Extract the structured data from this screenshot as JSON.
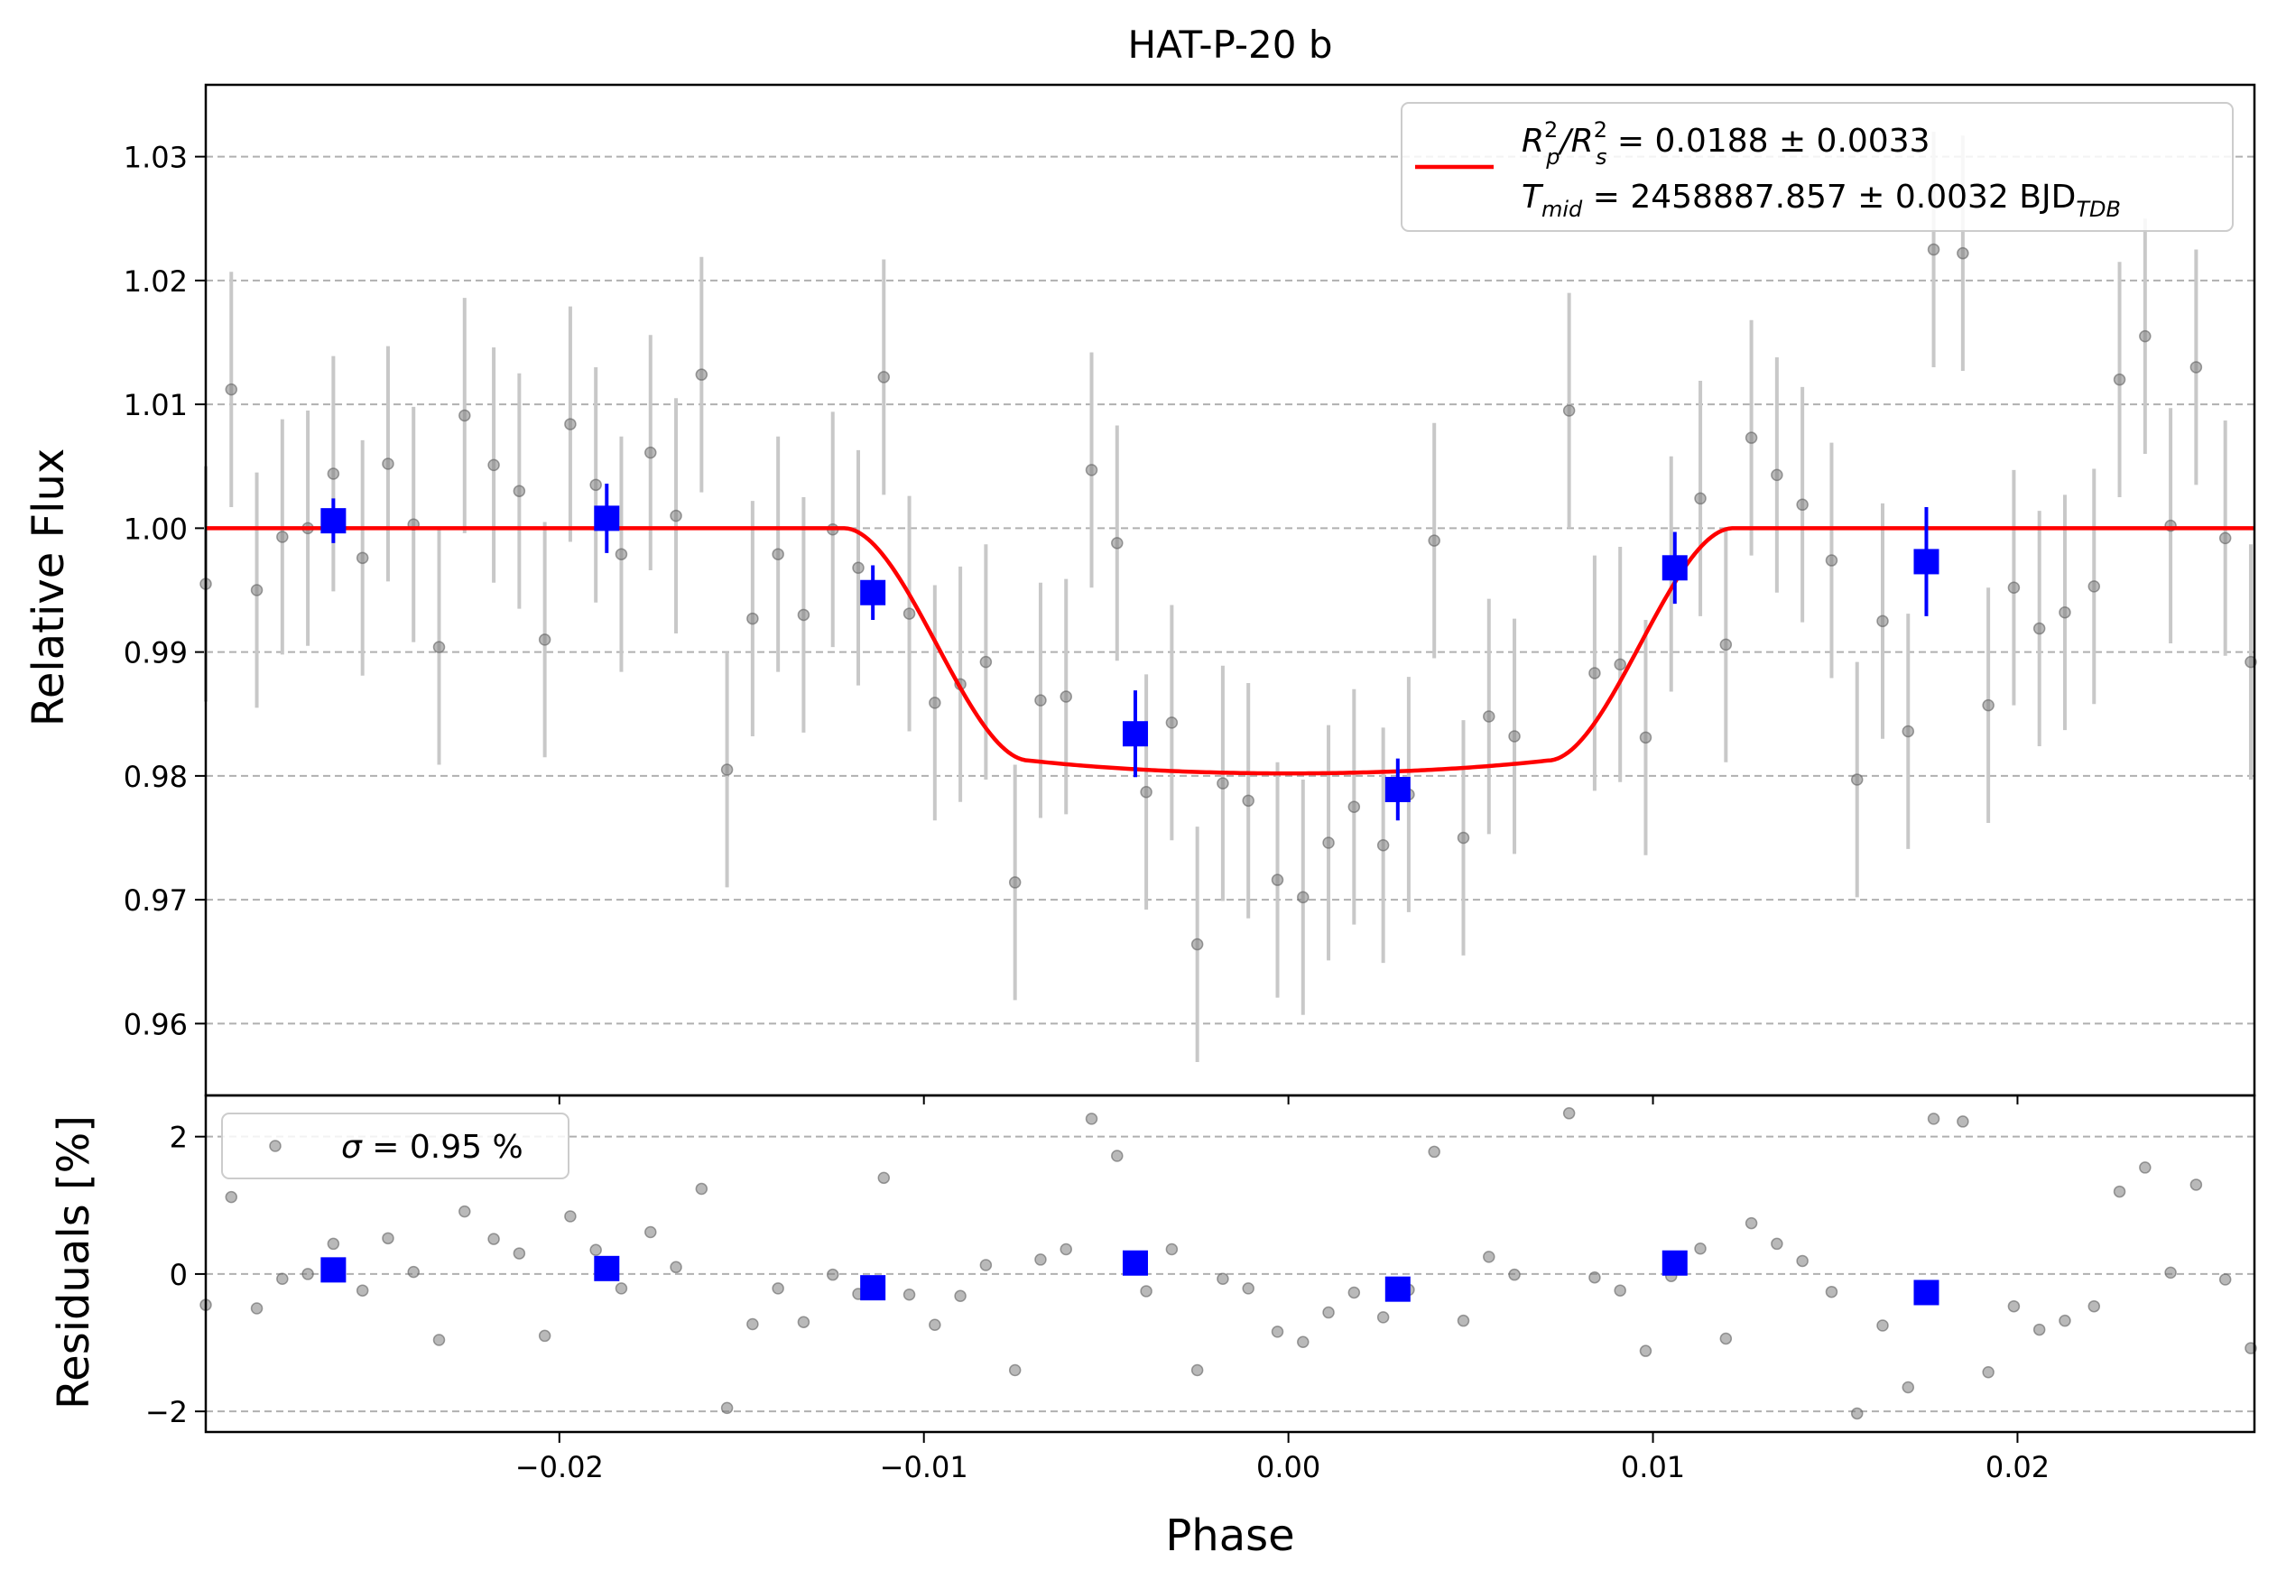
{
  "chart_data": [
    {
      "panel": "top",
      "type": "scatter",
      "title": "HAT-P-20 b",
      "xlabel": "",
      "ylabel": "Relative Flux",
      "xlim": [
        -0.0297,
        0.0265
      ],
      "ylim": [
        0.9542,
        1.0358
      ],
      "y_ticks": [
        0.96,
        0.97,
        0.98,
        0.99,
        1.0,
        1.01,
        1.02,
        1.03
      ],
      "y_tick_labels": [
        "0.96",
        "0.97",
        "0.98",
        "0.99",
        "1.00",
        "1.01",
        "1.02",
        "1.03"
      ],
      "grid": "horizontal dashed",
      "legend": {
        "placement": "top-right",
        "line1": "R²_p/R²_s = 0.0188 ± 0.0033",
        "line2": "T_mid = 2458887.857 ± 0.0032 BJD_TDB"
      },
      "model_params": {
        "depth": 0.0198,
        "t1": -0.0122,
        "t2": -0.0071,
        "t3": 0.0071,
        "t4": 0.0122
      },
      "raw_points": [
        {
          "x": -0.0297,
          "y": 0.9955,
          "err": 0.0095
        },
        {
          "x": -0.029,
          "y": 1.0112,
          "err": 0.0095
        },
        {
          "x": -0.0283,
          "y": 0.995,
          "err": 0.0095
        },
        {
          "x": -0.0276,
          "y": 0.9993,
          "err": 0.0095
        },
        {
          "x": -0.0269,
          "y": 1.0,
          "err": 0.0095
        },
        {
          "x": -0.0262,
          "y": 1.0044,
          "err": 0.0095
        },
        {
          "x": -0.0254,
          "y": 0.9976,
          "err": 0.0095
        },
        {
          "x": -0.0247,
          "y": 1.0052,
          "err": 0.0095
        },
        {
          "x": -0.024,
          "y": 1.0003,
          "err": 0.0095
        },
        {
          "x": -0.0233,
          "y": 0.9904,
          "err": 0.0095
        },
        {
          "x": -0.0226,
          "y": 1.0091,
          "err": 0.0095
        },
        {
          "x": -0.0218,
          "y": 1.0051,
          "err": 0.0095
        },
        {
          "x": -0.0211,
          "y": 1.003,
          "err": 0.0095
        },
        {
          "x": -0.0204,
          "y": 0.991,
          "err": 0.0095
        },
        {
          "x": -0.0197,
          "y": 1.0084,
          "err": 0.0095
        },
        {
          "x": -0.019,
          "y": 1.0035,
          "err": 0.0095
        },
        {
          "x": -0.0183,
          "y": 0.9979,
          "err": 0.0095
        },
        {
          "x": -0.0175,
          "y": 1.0061,
          "err": 0.0095
        },
        {
          "x": -0.0168,
          "y": 1.001,
          "err": 0.0095
        },
        {
          "x": -0.0161,
          "y": 1.0124,
          "err": 0.0095
        },
        {
          "x": -0.0154,
          "y": 0.9805,
          "err": 0.0095
        },
        {
          "x": -0.0147,
          "y": 0.9927,
          "err": 0.0095
        },
        {
          "x": -0.014,
          "y": 0.9979,
          "err": 0.0095
        },
        {
          "x": -0.0133,
          "y": 0.993,
          "err": 0.0095
        },
        {
          "x": -0.0125,
          "y": 0.9999,
          "err": 0.0095
        },
        {
          "x": -0.0118,
          "y": 0.9968,
          "err": 0.0095
        },
        {
          "x": -0.0111,
          "y": 1.0122,
          "err": 0.0095
        },
        {
          "x": -0.0104,
          "y": 0.9931,
          "err": 0.0095
        },
        {
          "x": -0.0097,
          "y": 0.9859,
          "err": 0.0095
        },
        {
          "x": -0.009,
          "y": 0.9874,
          "err": 0.0095
        },
        {
          "x": -0.0083,
          "y": 0.9892,
          "err": 0.0095
        },
        {
          "x": -0.0075,
          "y": 0.9714,
          "err": 0.0095
        },
        {
          "x": -0.0068,
          "y": 0.9861,
          "err": 0.0095
        },
        {
          "x": -0.0061,
          "y": 0.9864,
          "err": 0.0095
        },
        {
          "x": -0.0054,
          "y": 1.0047,
          "err": 0.0095
        },
        {
          "x": -0.0047,
          "y": 0.9988,
          "err": 0.0095
        },
        {
          "x": -0.0039,
          "y": 0.9787,
          "err": 0.0095
        },
        {
          "x": -0.0032,
          "y": 0.9843,
          "err": 0.0095
        },
        {
          "x": -0.0025,
          "y": 0.9664,
          "err": 0.0095
        },
        {
          "x": -0.0018,
          "y": 0.9794,
          "err": 0.0095
        },
        {
          "x": -0.0011,
          "y": 0.978,
          "err": 0.0095
        },
        {
          "x": -0.0003,
          "y": 0.9716,
          "err": 0.0095
        },
        {
          "x": 0.0004,
          "y": 0.9702,
          "err": 0.0095
        },
        {
          "x": 0.0011,
          "y": 0.9746,
          "err": 0.0095
        },
        {
          "x": 0.0018,
          "y": 0.9775,
          "err": 0.0095
        },
        {
          "x": 0.0026,
          "y": 0.9744,
          "err": 0.0095
        },
        {
          "x": 0.0033,
          "y": 0.9785,
          "err": 0.0095
        },
        {
          "x": 0.004,
          "y": 0.999,
          "err": 0.0095
        },
        {
          "x": 0.0048,
          "y": 0.975,
          "err": 0.0095
        },
        {
          "x": 0.0055,
          "y": 0.9848,
          "err": 0.0095
        },
        {
          "x": 0.0062,
          "y": 0.9832,
          "err": 0.0095
        },
        {
          "x": 0.0077,
          "y": 1.0095,
          "err": 0.0095
        },
        {
          "x": 0.0084,
          "y": 0.9883,
          "err": 0.0095
        },
        {
          "x": 0.0091,
          "y": 0.989,
          "err": 0.0095
        },
        {
          "x": 0.0098,
          "y": 0.9831,
          "err": 0.0095
        },
        {
          "x": 0.0105,
          "y": 0.9963,
          "err": 0.0095
        },
        {
          "x": 0.0113,
          "y": 1.0024,
          "err": 0.0095
        },
        {
          "x": 0.012,
          "y": 0.9906,
          "err": 0.0095
        },
        {
          "x": 0.0127,
          "y": 1.0073,
          "err": 0.0095
        },
        {
          "x": 0.0134,
          "y": 1.0043,
          "err": 0.0095
        },
        {
          "x": 0.0141,
          "y": 1.0019,
          "err": 0.0095
        },
        {
          "x": 0.0149,
          "y": 0.9974,
          "err": 0.0095
        },
        {
          "x": 0.0156,
          "y": 0.9797,
          "err": 0.0095
        },
        {
          "x": 0.0163,
          "y": 0.9925,
          "err": 0.0095
        },
        {
          "x": 0.017,
          "y": 0.9836,
          "err": 0.0095
        },
        {
          "x": 0.0177,
          "y": 1.0225,
          "err": 0.0095
        },
        {
          "x": 0.0185,
          "y": 1.0222,
          "err": 0.0095
        },
        {
          "x": 0.0192,
          "y": 0.9857,
          "err": 0.0095
        },
        {
          "x": 0.0199,
          "y": 0.9952,
          "err": 0.0095
        },
        {
          "x": 0.0206,
          "y": 0.9919,
          "err": 0.0095
        },
        {
          "x": 0.0213,
          "y": 0.9932,
          "err": 0.0095
        },
        {
          "x": 0.0221,
          "y": 0.9953,
          "err": 0.0095
        },
        {
          "x": 0.0228,
          "y": 1.012,
          "err": 0.0095
        },
        {
          "x": 0.0235,
          "y": 1.0155,
          "err": 0.0095
        },
        {
          "x": 0.0242,
          "y": 1.0002,
          "err": 0.0095
        },
        {
          "x": 0.0249,
          "y": 1.013,
          "err": 0.0095
        },
        {
          "x": 0.0257,
          "y": 0.9992,
          "err": 0.0095
        },
        {
          "x": 0.0264,
          "y": 0.9892,
          "err": 0.0095
        }
      ],
      "binned_points": [
        {
          "x": -0.0262,
          "y": 1.0006,
          "err": 0.0018
        },
        {
          "x": -0.0187,
          "y": 1.0008,
          "err": 0.0028
        },
        {
          "x": -0.0114,
          "y": 0.9948,
          "err": 0.0022
        },
        {
          "x": -0.0042,
          "y": 0.9834,
          "err": 0.0035
        },
        {
          "x": 0.003,
          "y": 0.9789,
          "err": 0.0025
        },
        {
          "x": 0.0106,
          "y": 0.9968,
          "err": 0.0029
        },
        {
          "x": 0.0175,
          "y": 0.9973,
          "err": 0.0044
        }
      ]
    },
    {
      "panel": "bottom",
      "type": "scatter",
      "xlabel": "Phase",
      "ylabel": "Residuals [%]",
      "xlim": [
        -0.0297,
        0.0265
      ],
      "ylim": [
        -2.3,
        2.6
      ],
      "x_ticks": [
        -0.02,
        -0.01,
        0.0,
        0.01,
        0.02
      ],
      "x_tick_labels": [
        "−0.02",
        "−0.01",
        "0.00",
        "0.01",
        "0.02"
      ],
      "y_ticks": [
        -2,
        0,
        2
      ],
      "y_tick_labels": [
        "−2",
        "0",
        "2"
      ],
      "grid": "horizontal dashed",
      "legend": {
        "placement": "top-left",
        "label": "σ = 0.95 %"
      },
      "residual_points": [
        {
          "x": -0.0297,
          "y": -0.45
        },
        {
          "x": -0.029,
          "y": 1.12
        },
        {
          "x": -0.0283,
          "y": -0.5
        },
        {
          "x": -0.0276,
          "y": -0.07
        },
        {
          "x": -0.0269,
          "y": 0.0
        },
        {
          "x": -0.0262,
          "y": 0.44
        },
        {
          "x": -0.0254,
          "y": -0.24
        },
        {
          "x": -0.0247,
          "y": 0.52
        },
        {
          "x": -0.024,
          "y": 0.03
        },
        {
          "x": -0.0233,
          "y": -0.96
        },
        {
          "x": -0.0226,
          "y": 0.91
        },
        {
          "x": -0.0218,
          "y": 0.51
        },
        {
          "x": -0.0211,
          "y": 0.3
        },
        {
          "x": -0.0204,
          "y": -0.9
        },
        {
          "x": -0.0197,
          "y": 0.84
        },
        {
          "x": -0.019,
          "y": 0.35
        },
        {
          "x": -0.0183,
          "y": -0.21
        },
        {
          "x": -0.0175,
          "y": 0.61
        },
        {
          "x": -0.0168,
          "y": 0.1
        },
        {
          "x": -0.0161,
          "y": 1.24
        },
        {
          "x": -0.0154,
          "y": -1.95
        },
        {
          "x": -0.0147,
          "y": -0.73
        },
        {
          "x": -0.014,
          "y": -0.21
        },
        {
          "x": -0.0133,
          "y": -0.7
        },
        {
          "x": -0.0125,
          "y": -0.01
        },
        {
          "x": -0.0118,
          "y": -0.29
        },
        {
          "x": -0.0111,
          "y": 1.4
        },
        {
          "x": -0.0104,
          "y": -0.3
        },
        {
          "x": -0.0097,
          "y": -0.74
        },
        {
          "x": -0.009,
          "y": -0.32
        },
        {
          "x": -0.0083,
          "y": 0.13
        },
        {
          "x": -0.0075,
          "y": -1.4
        },
        {
          "x": -0.0068,
          "y": 0.21
        },
        {
          "x": -0.0061,
          "y": 0.36
        },
        {
          "x": -0.0054,
          "y": 2.26
        },
        {
          "x": -0.0047,
          "y": 1.72
        },
        {
          "x": -0.0039,
          "y": -0.25
        },
        {
          "x": -0.0032,
          "y": 0.36
        },
        {
          "x": -0.0025,
          "y": -1.4
        },
        {
          "x": -0.0018,
          "y": -0.07
        },
        {
          "x": -0.0011,
          "y": -0.21
        },
        {
          "x": -0.0003,
          "y": -0.84
        },
        {
          "x": 0.0004,
          "y": -0.99
        },
        {
          "x": 0.0011,
          "y": -0.56
        },
        {
          "x": 0.0018,
          "y": -0.27
        },
        {
          "x": 0.0026,
          "y": -0.63
        },
        {
          "x": 0.0033,
          "y": -0.23
        },
        {
          "x": 0.004,
          "y": 1.78
        },
        {
          "x": 0.0048,
          "y": -0.68
        },
        {
          "x": 0.0055,
          "y": 0.25
        },
        {
          "x": 0.0062,
          "y": -0.01
        },
        {
          "x": 0.0077,
          "y": 2.34
        },
        {
          "x": 0.0084,
          "y": -0.05
        },
        {
          "x": 0.0091,
          "y": -0.24
        },
        {
          "x": 0.0098,
          "y": -1.12
        },
        {
          "x": 0.0105,
          "y": -0.03
        },
        {
          "x": 0.0113,
          "y": 0.37
        },
        {
          "x": 0.012,
          "y": -0.94
        },
        {
          "x": 0.0127,
          "y": 0.74
        },
        {
          "x": 0.0134,
          "y": 0.44
        },
        {
          "x": 0.0141,
          "y": 0.19
        },
        {
          "x": 0.0149,
          "y": -0.26
        },
        {
          "x": 0.0156,
          "y": -2.03
        },
        {
          "x": 0.0163,
          "y": -0.75
        },
        {
          "x": 0.017,
          "y": -1.65
        },
        {
          "x": 0.0177,
          "y": 2.26
        },
        {
          "x": 0.0185,
          "y": 2.22
        },
        {
          "x": 0.0192,
          "y": -1.43
        },
        {
          "x": 0.0199,
          "y": -0.47
        },
        {
          "x": 0.0206,
          "y": -0.81
        },
        {
          "x": 0.0213,
          "y": -0.68
        },
        {
          "x": 0.0221,
          "y": -0.47
        },
        {
          "x": 0.0228,
          "y": 1.2
        },
        {
          "x": 0.0235,
          "y": 1.55
        },
        {
          "x": 0.0242,
          "y": 0.02
        },
        {
          "x": 0.0249,
          "y": 1.3
        },
        {
          "x": 0.0257,
          "y": -0.08
        },
        {
          "x": 0.0264,
          "y": -1.08
        }
      ],
      "binned_residuals": [
        {
          "x": -0.0262,
          "y": 0.06
        },
        {
          "x": -0.0187,
          "y": 0.08
        },
        {
          "x": -0.0114,
          "y": -0.2
        },
        {
          "x": -0.0042,
          "y": 0.16
        },
        {
          "x": 0.003,
          "y": -0.22
        },
        {
          "x": 0.0106,
          "y": 0.16
        },
        {
          "x": 0.0175,
          "y": -0.27
        }
      ]
    }
  ],
  "colors": {
    "raw_points": "#808080",
    "raw_errorbars": "#c8c8c8",
    "binned": "#0000ff",
    "model": "#ff0000",
    "grid": "#b0b0b0"
  }
}
